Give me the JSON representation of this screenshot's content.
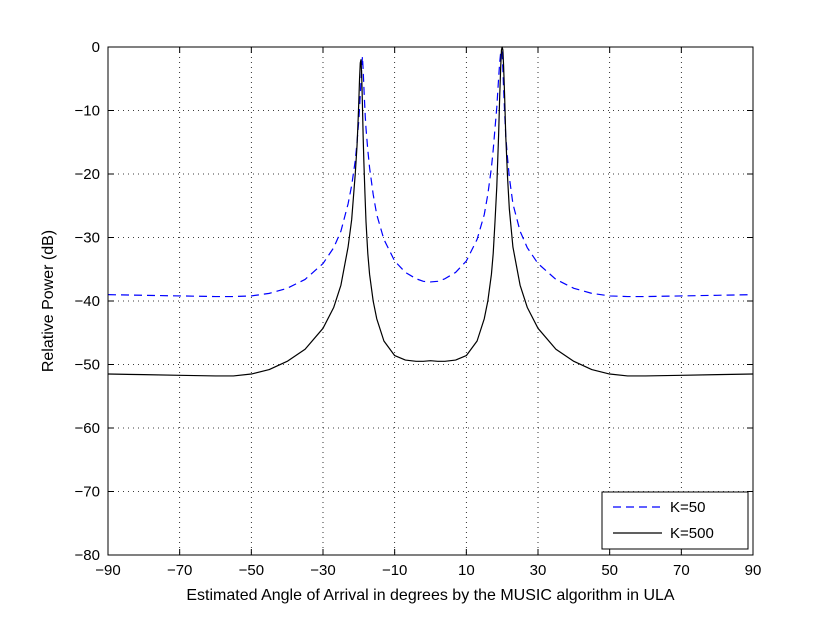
{
  "chart_data": {
    "type": "line",
    "title": "",
    "xlabel": "Estimated Angle of Arrival in degrees by the MUSIC algorithm in ULA",
    "ylabel": "Relative Power (dB)",
    "xlim": [
      -90,
      90
    ],
    "ylim": [
      -80,
      0
    ],
    "xticks": [
      -90,
      -70,
      -50,
      -30,
      -10,
      10,
      30,
      50,
      70,
      90
    ],
    "yticks": [
      0,
      -10,
      -20,
      -30,
      -40,
      -50,
      -60,
      -70,
      -80
    ],
    "xtick_labels": [
      "−90",
      "−70",
      "−50",
      "−30",
      "−10",
      "10",
      "30",
      "50",
      "70",
      "90"
    ],
    "ytick_labels": [
      "0",
      "−10",
      "−20",
      "−30",
      "−40",
      "−50",
      "−60",
      "−70",
      "−80"
    ],
    "grid": true,
    "legend_position": "bottom-right",
    "series": [
      {
        "name": "K=50",
        "color": "#0000ff",
        "style": "dashed",
        "x": [
          -90,
          -80,
          -70,
          -60,
          -55,
          -50,
          -45,
          -40,
          -35,
          -30,
          -27,
          -25,
          -23,
          -22,
          -21,
          -20.5,
          -20,
          -19.7,
          -19.4,
          -19.2,
          -19,
          -18.8,
          -18.5,
          -18.2,
          -18,
          -17.5,
          -17,
          -16,
          -15,
          -13,
          -10,
          -7,
          -4,
          -2,
          0,
          2,
          4,
          7,
          10,
          13,
          15,
          16,
          17,
          17.5,
          18,
          18.5,
          19,
          19.3,
          19.6,
          19.8,
          20,
          20.2,
          20.4,
          20.7,
          21,
          21.5,
          22,
          23,
          25,
          27,
          30,
          35,
          40,
          45,
          50,
          55,
          60,
          70,
          80,
          90
        ],
        "y": [
          -39.0,
          -39.1,
          -39.2,
          -39.3,
          -39.3,
          -39.2,
          -38.8,
          -38.0,
          -36.6,
          -34.1,
          -31.6,
          -29.0,
          -24.7,
          -21.8,
          -17.9,
          -15.0,
          -11.5,
          -8.5,
          -5.5,
          -3.4,
          -1.5,
          -3.5,
          -7.5,
          -11.0,
          -12.8,
          -16.2,
          -19.0,
          -23.2,
          -26.4,
          -30.3,
          -33.7,
          -35.5,
          -36.5,
          -36.9,
          -37.0,
          -36.9,
          -36.5,
          -35.5,
          -33.7,
          -30.3,
          -26.4,
          -23.2,
          -19.0,
          -16.2,
          -12.8,
          -9.5,
          -5.0,
          -2.5,
          -0.8,
          -0.5,
          -1.0,
          -3.5,
          -6.5,
          -10.5,
          -14.0,
          -17.5,
          -20.5,
          -24.7,
          -29.0,
          -31.6,
          -34.1,
          -36.6,
          -38.0,
          -38.8,
          -39.2,
          -39.3,
          -39.3,
          -39.2,
          -39.1,
          -39.0
        ]
      },
      {
        "name": "K=500",
        "color": "#000000",
        "style": "solid",
        "x": [
          -90,
          -80,
          -70,
          -60,
          -55,
          -50,
          -45,
          -40,
          -35,
          -30,
          -27,
          -25,
          -23,
          -22,
          -21,
          -20.5,
          -20.2,
          -20,
          -19.8,
          -19.6,
          -19.4,
          -19.2,
          -19,
          -18.8,
          -18.6,
          -18.3,
          -18,
          -17.5,
          -17,
          -16,
          -15,
          -13,
          -10,
          -7,
          -4,
          -2,
          0,
          2,
          4,
          7,
          10,
          13,
          15,
          16,
          17,
          17.5,
          18,
          18.5,
          19,
          19.3,
          19.6,
          19.8,
          20,
          20.2,
          20.4,
          20.7,
          21,
          21.5,
          22,
          23,
          25,
          27,
          30,
          35,
          40,
          45,
          50,
          55,
          60,
          70,
          80,
          90
        ],
        "y": [
          -51.5,
          -51.6,
          -51.7,
          -51.8,
          -51.8,
          -51.5,
          -50.8,
          -49.5,
          -47.6,
          -44.3,
          -41.0,
          -37.5,
          -31.5,
          -27.2,
          -20.0,
          -15.5,
          -11.5,
          -8.5,
          -5.0,
          -2.5,
          -2.0,
          -4.5,
          -9.0,
          -14.0,
          -18.0,
          -23.0,
          -27.5,
          -32.5,
          -35.8,
          -40.0,
          -42.8,
          -46.3,
          -48.6,
          -49.3,
          -49.5,
          -49.5,
          -49.4,
          -49.5,
          -49.5,
          -49.3,
          -48.6,
          -46.3,
          -42.8,
          -40.0,
          -35.8,
          -32.5,
          -27.5,
          -22.0,
          -14.0,
          -8.0,
          -3.0,
          -0.5,
          0.0,
          -0.5,
          -3.0,
          -8.0,
          -14.0,
          -20.5,
          -25.5,
          -31.5,
          -37.5,
          -41.0,
          -44.3,
          -47.6,
          -49.5,
          -50.8,
          -51.5,
          -51.8,
          -51.8,
          -51.7,
          -51.6,
          -51.5
        ]
      }
    ]
  }
}
